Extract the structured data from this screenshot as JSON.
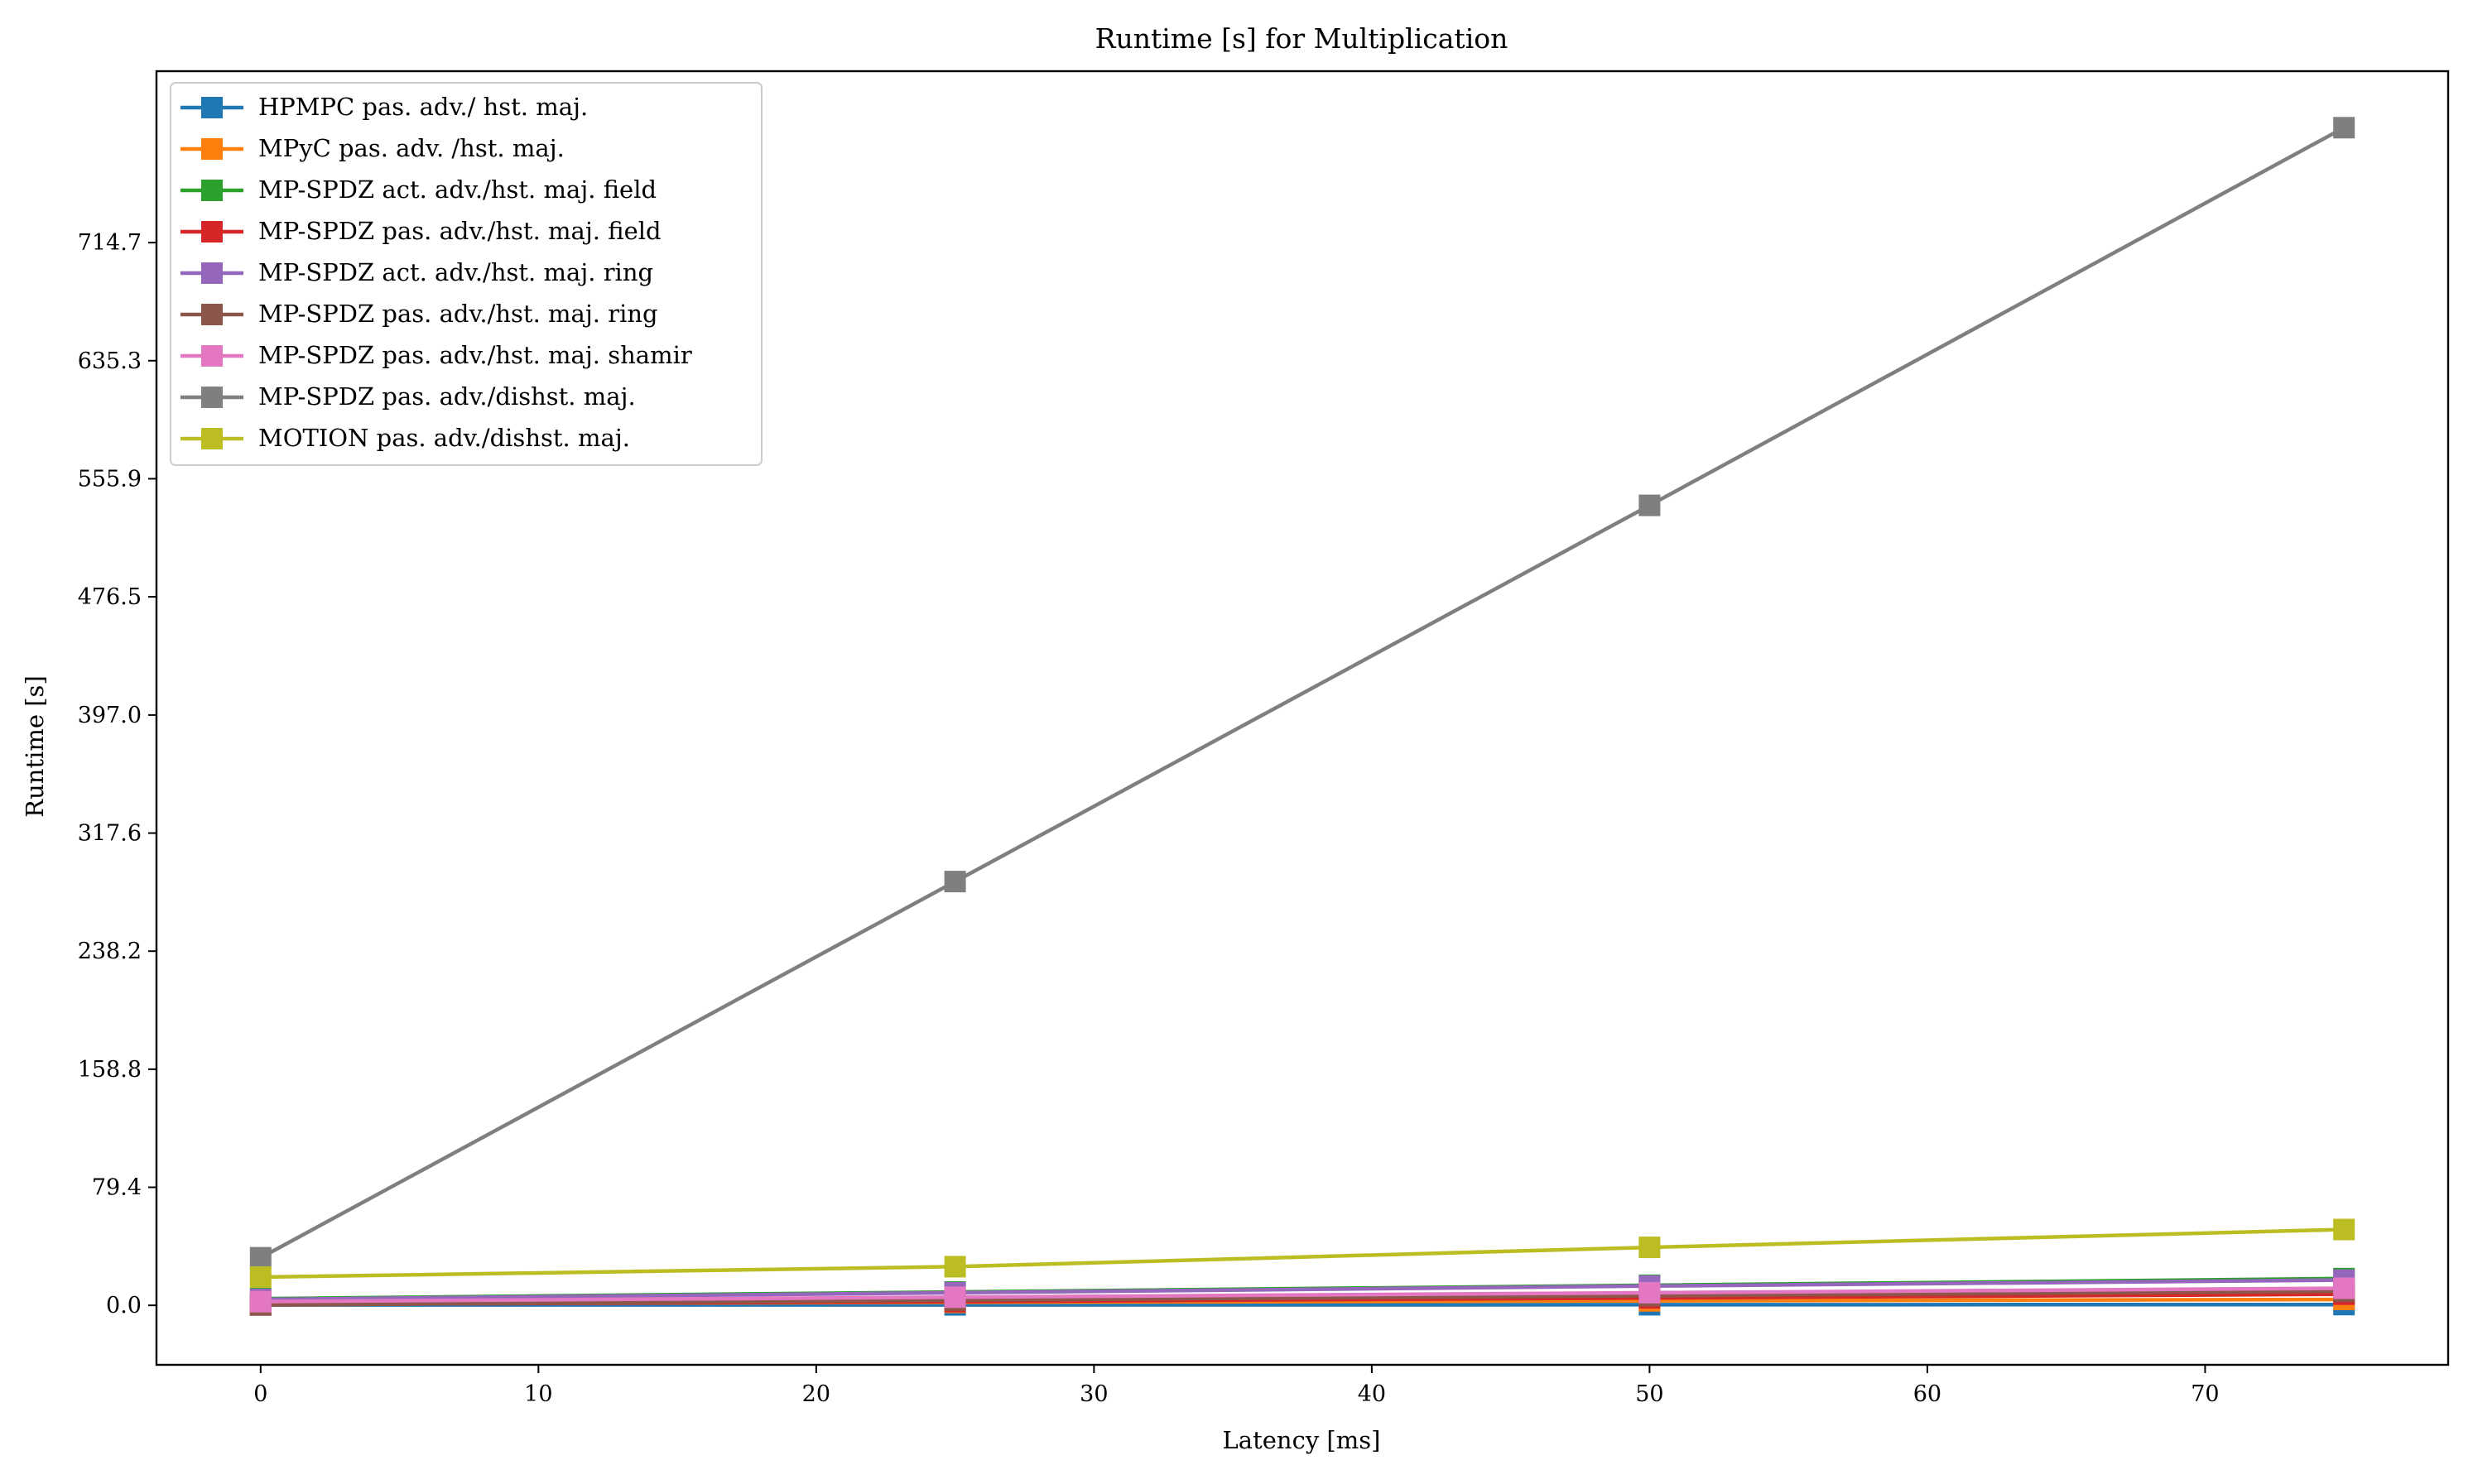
{
  "chart_data": {
    "type": "line",
    "title": "Runtime [s] for Multiplication",
    "xlabel": "Latency [ms]",
    "ylabel": "Runtime [s]",
    "xlim": [
      -3.75,
      78.75
    ],
    "ylim": [
      -40,
      830
    ],
    "xticks": [
      "0",
      "10",
      "20",
      "30",
      "40",
      "50",
      "60",
      "70"
    ],
    "xtick_values": [
      0,
      10,
      20,
      30,
      40,
      50,
      60,
      70
    ],
    "yticks": [
      "0.0",
      "79.4",
      "158.8",
      "238.2",
      "317.6",
      "397.0",
      "476.5",
      "555.9",
      "635.3",
      "714.7"
    ],
    "ytick_values": [
      0,
      79.4,
      158.8,
      238.2,
      317.6,
      397.0,
      476.5,
      555.9,
      635.3,
      714.7
    ],
    "x": [
      0,
      25,
      50,
      75
    ],
    "grid": false,
    "legend_position": "upper-left",
    "marker": "square",
    "series": [
      {
        "name": "HPMPC pas. adv./ hst. maj.",
        "color": "#1f77b4",
        "values": [
          0.3,
          0.3,
          0.4,
          0.5
        ]
      },
      {
        "name": "MPyC pas. adv. /hst. maj.",
        "color": "#ff7f0e",
        "values": [
          1.0,
          2.0,
          3.0,
          4.0
        ]
      },
      {
        "name": "MP-SPDZ act. adv./hst. maj. field",
        "color": "#2ca02c",
        "values": [
          4.5,
          9.0,
          13.5,
          18.0
        ]
      },
      {
        "name": "MP-SPDZ pas. adv./hst. maj. field",
        "color": "#d62728",
        "values": [
          0.5,
          2.5,
          5.0,
          7.5
        ]
      },
      {
        "name": "MP-SPDZ act. adv./hst. maj. ring",
        "color": "#9467bd",
        "values": [
          4.0,
          8.5,
          13.0,
          17.0
        ]
      },
      {
        "name": "MP-SPDZ pas. adv./hst. maj. ring",
        "color": "#8c564b",
        "values": [
          0.2,
          3.5,
          6.5,
          9.5
        ]
      },
      {
        "name": "MP-SPDZ pas. adv./hst. maj. shamir",
        "color": "#e377c2",
        "values": [
          2.5,
          5.5,
          8.5,
          11.5
        ]
      },
      {
        "name": "MP-SPDZ pas. adv./dishst. maj.",
        "color": "#7f7f7f",
        "values": [
          32,
          285,
          538,
          792
        ]
      },
      {
        "name": "MOTION pas. adv./dishst. maj.",
        "color": "#bcbd22",
        "values": [
          19,
          26,
          39,
          51
        ]
      }
    ]
  }
}
